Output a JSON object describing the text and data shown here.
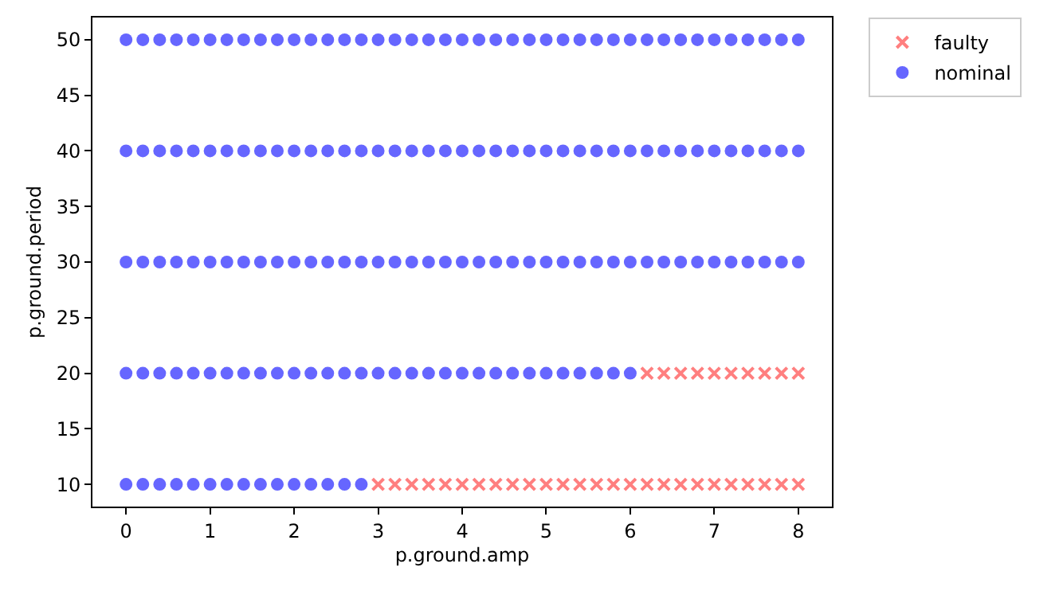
{
  "chart_data": {
    "type": "scatter",
    "xlabel": "p.ground.amp",
    "ylabel": "p.ground.period",
    "xlim": [
      -0.4,
      8.4
    ],
    "xticks": [
      0,
      1,
      2,
      3,
      4,
      5,
      6,
      7,
      8
    ],
    "ylim": [
      8,
      52
    ],
    "yticks": [
      10,
      15,
      20,
      25,
      30,
      35,
      40,
      45,
      50
    ],
    "legend": "top right",
    "series": [
      {
        "name": "faulty",
        "color": "#ff7f7f",
        "marker": "cross",
        "x": [
          3,
          3.2,
          3.4,
          3.6,
          3.8,
          4,
          4.2,
          4.4,
          4.6,
          4.8,
          5,
          5.2,
          5.4,
          5.6,
          5.8,
          6,
          6.2,
          6.4,
          6.6,
          6.8,
          7,
          7.2,
          7.4,
          7.6,
          7.8,
          8,
          6.2,
          6.4,
          6.6,
          6.8,
          7,
          7.2,
          7.4,
          7.6,
          7.8,
          8
        ],
        "values": [
          10,
          10,
          10,
          10,
          10,
          10,
          10,
          10,
          10,
          10,
          10,
          10,
          10,
          10,
          10,
          10,
          10,
          10,
          10,
          10,
          10,
          10,
          10,
          10,
          10,
          10,
          20,
          20,
          20,
          20,
          20,
          20,
          20,
          20,
          20,
          20
        ]
      },
      {
        "name": "nominal",
        "color": "#6666ff",
        "marker": "circle",
        "x": [
          0,
          0.2,
          0.4,
          0.6,
          0.8,
          1,
          1.2,
          1.4,
          1.6,
          1.8,
          2,
          2.2,
          2.4,
          2.6,
          2.8,
          0,
          0.2,
          0.4,
          0.6,
          0.8,
          1,
          1.2,
          1.4,
          1.6,
          1.8,
          2,
          2.2,
          2.4,
          2.6,
          2.8,
          3,
          3.2,
          3.4,
          3.6,
          3.8,
          4,
          4.2,
          4.4,
          4.6,
          4.8,
          5,
          5.2,
          5.4,
          5.6,
          5.8,
          6,
          0,
          0.2,
          0.4,
          0.6,
          0.8,
          1,
          1.2,
          1.4,
          1.6,
          1.8,
          2,
          2.2,
          2.4,
          2.6,
          2.8,
          3,
          3.2,
          3.4,
          3.6,
          3.8,
          4,
          4.2,
          4.4,
          4.6,
          4.8,
          5,
          5.2,
          5.4,
          5.6,
          5.8,
          6,
          6.2,
          6.4,
          6.6,
          6.8,
          7,
          7.2,
          7.4,
          7.6,
          7.8,
          8,
          0,
          0.2,
          0.4,
          0.6,
          0.8,
          1,
          1.2,
          1.4,
          1.6,
          1.8,
          2,
          2.2,
          2.4,
          2.6,
          2.8,
          3,
          3.2,
          3.4,
          3.6,
          3.8,
          4,
          4.2,
          4.4,
          4.6,
          4.8,
          5,
          5.2,
          5.4,
          5.6,
          5.8,
          6,
          6.2,
          6.4,
          6.6,
          6.8,
          7,
          7.2,
          7.4,
          7.6,
          7.8,
          8,
          0,
          0.2,
          0.4,
          0.6,
          0.8,
          1,
          1.2,
          1.4,
          1.6,
          1.8,
          2,
          2.2,
          2.4,
          2.6,
          2.8,
          3,
          3.2,
          3.4,
          3.6,
          3.8,
          4,
          4.2,
          4.4,
          4.6,
          4.8,
          5,
          5.2,
          5.4,
          5.6,
          5.8,
          6,
          6.2,
          6.4,
          6.6,
          6.8,
          7,
          7.2,
          7.4,
          7.6,
          7.8,
          8
        ],
        "values": [
          10,
          10,
          10,
          10,
          10,
          10,
          10,
          10,
          10,
          10,
          10,
          10,
          10,
          10,
          10,
          20,
          20,
          20,
          20,
          20,
          20,
          20,
          20,
          20,
          20,
          20,
          20,
          20,
          20,
          20,
          20,
          20,
          20,
          20,
          20,
          20,
          20,
          20,
          20,
          20,
          20,
          20,
          20,
          20,
          20,
          20,
          30,
          30,
          30,
          30,
          30,
          30,
          30,
          30,
          30,
          30,
          30,
          30,
          30,
          30,
          30,
          30,
          30,
          30,
          30,
          30,
          30,
          30,
          30,
          30,
          30,
          30,
          30,
          30,
          30,
          30,
          30,
          30,
          30,
          30,
          30,
          30,
          30,
          30,
          30,
          30,
          30,
          40,
          40,
          40,
          40,
          40,
          40,
          40,
          40,
          40,
          40,
          40,
          40,
          40,
          40,
          40,
          40,
          40,
          40,
          40,
          40,
          40,
          40,
          40,
          40,
          40,
          40,
          40,
          40,
          40,
          40,
          40,
          40,
          40,
          40,
          40,
          40,
          40,
          40,
          40,
          40,
          40,
          50,
          50,
          50,
          50,
          50,
          50,
          50,
          50,
          50,
          50,
          50,
          50,
          50,
          50,
          50,
          50,
          50,
          50,
          50,
          50,
          50,
          50,
          50,
          50,
          50,
          50,
          50,
          50,
          50,
          50,
          50,
          50,
          50,
          50,
          50,
          50,
          50,
          50,
          50,
          50,
          50
        ]
      }
    ]
  }
}
